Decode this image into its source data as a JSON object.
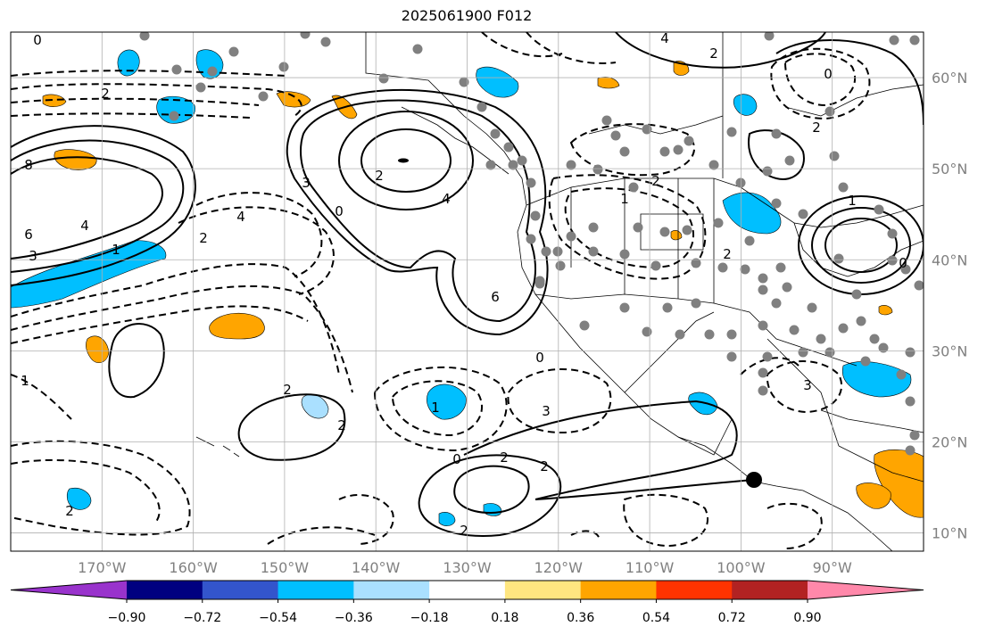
{
  "title": "2025061900 F012",
  "map": {
    "projection": "equirectangular",
    "lon_range": [
      -180,
      -80
    ],
    "lat_range": [
      8,
      65
    ],
    "grid": true,
    "lat_labels": [
      "60°N",
      "50°N",
      "40°N",
      "30°N",
      "20°N",
      "10°N"
    ],
    "lon_labels": [
      "170°W",
      "160°W",
      "150°W",
      "140°W",
      "130°W",
      "120°W",
      "110°W",
      "100°W",
      "90°W"
    ],
    "contour_labels": [
      "0",
      "2",
      "8",
      "6",
      "4",
      "3",
      "1",
      "2",
      "4",
      "3",
      "2",
      "0",
      "4",
      "6",
      "0",
      "3",
      "2",
      "2",
      "2",
      "1",
      "0",
      "2",
      "2",
      "2",
      "1",
      "2",
      "3",
      "4",
      "2",
      "0",
      "2",
      "1",
      "0",
      "2",
      "1"
    ],
    "station_color": "#808080",
    "marker_color": "#000000"
  },
  "colorbar": {
    "ticks": [
      "−0.90",
      "−0.72",
      "−0.54",
      "−0.36",
      "−0.18",
      "0.18",
      "0.36",
      "0.54",
      "0.72",
      "0.90"
    ],
    "colors": [
      "#9933cc",
      "#000080",
      "#3355cc",
      "#00bfff",
      "#aae0ff",
      "#ffffff",
      "#ffe680",
      "#ffa500",
      "#ff3300",
      "#b22222",
      "#ff88aa"
    ]
  }
}
